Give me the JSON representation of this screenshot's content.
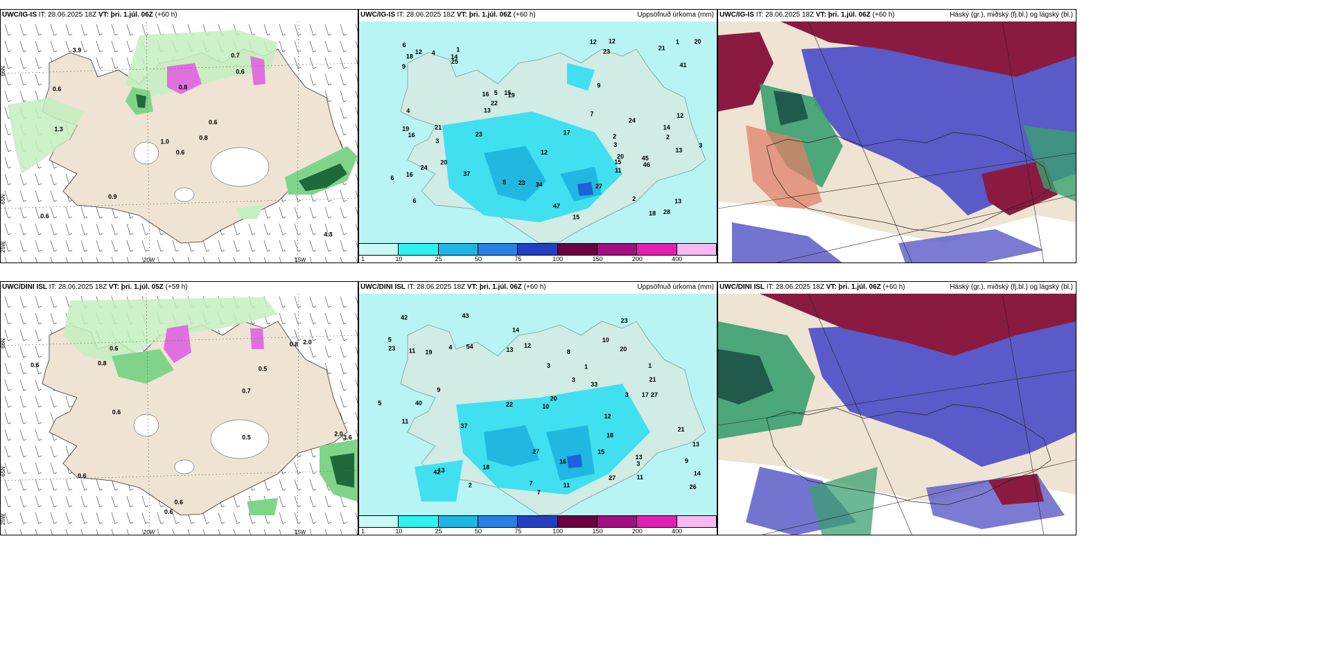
{
  "panels": [
    {
      "id": "p1",
      "model": "UWC/IG-IS",
      "it_label": "IT:",
      "it_value": "28.06.2025 18Z",
      "vt_label": "VT:",
      "vt_value": "þri. 1.júl. 06Z",
      "lead": "(+60 h)",
      "right": "",
      "labels": [
        "0.6",
        "0.6",
        "1.0",
        "0.6",
        "0.6",
        "0.9",
        "0.7",
        "0.8",
        "0.6",
        "0.8",
        "3.9",
        "4.3",
        "1.3"
      ],
      "grid": [
        "66N",
        "65N",
        "25W",
        "20W",
        "15W"
      ]
    },
    {
      "id": "p2",
      "model": "UWC/IG-IS",
      "it_label": "IT:",
      "it_value": "28.06.2025 18Z",
      "vt_label": "VT:",
      "vt_value": "þri. 1.júl. 06Z",
      "lead": "(+60 h)",
      "right": "Uppsöfnuð úrkoma (mm)",
      "labels": [
        "3",
        "2",
        "6",
        "1",
        "19",
        "2",
        "16",
        "23",
        "16",
        "15",
        "9",
        "19",
        "18",
        "13",
        "8",
        "12",
        "12",
        "17",
        "15",
        "20",
        "20",
        "21",
        "13",
        "13",
        "12",
        "14",
        "20",
        "16",
        "25",
        "24",
        "47",
        "27",
        "22",
        "23",
        "14",
        "46",
        "15",
        "21",
        "34",
        "24",
        "41",
        "12",
        "28",
        "23",
        "45",
        "37",
        "6",
        "12",
        "7",
        "4",
        "3",
        "5",
        "1",
        "2",
        "11",
        "18",
        "9",
        "6",
        "3",
        "4"
      ],
      "colorbar": [
        "1",
        "10",
        "25",
        "50",
        "75",
        "100",
        "150",
        "200",
        "400"
      ]
    },
    {
      "id": "p3",
      "model": "UWC/IG-IS",
      "it_label": "IT:",
      "it_value": "28.06.2025 18Z",
      "vt_label": "VT:",
      "vt_value": "þri. 1.júl. 06Z",
      "lead": "(+60 h)",
      "right": "Háský (gr.), miðský (fj.bl.) og lágský (bl.)"
    },
    {
      "id": "p4",
      "model": "UWC/DINI ISL",
      "it_label": "IT:",
      "it_value": "28.06.2025 18Z",
      "vt_label": "VT:",
      "vt_value": "þri. 1.júl. 05Z",
      "lead": "(+59 h)",
      "right": "",
      "labels": [
        "0.6",
        "0.8",
        "0.7",
        "0.6",
        "0.8",
        "0.6",
        "0.5",
        "0.6",
        "2.0",
        "3.6",
        "2.0",
        "0.6",
        "0.5",
        "0.6"
      ],
      "grid": [
        "66N",
        "65N",
        "25W",
        "20W",
        "15W"
      ]
    },
    {
      "id": "p5",
      "model": "UWC/DINI ISL",
      "it_label": "IT:",
      "it_value": "28.06.2025 18Z",
      "vt_label": "VT:",
      "vt_value": "þri. 1.júl. 06Z",
      "lead": "(+60 h)",
      "right": "Uppsöfnuð úrkoma (mm)",
      "labels": [
        "3",
        "3",
        "5",
        "1",
        "7",
        "12",
        "11",
        "10",
        "9",
        "11",
        "13",
        "8",
        "12",
        "11",
        "14",
        "20",
        "13",
        "15",
        "16",
        "18",
        "23",
        "27",
        "33",
        "22",
        "21",
        "19",
        "42",
        "26",
        "20",
        "14",
        "42",
        "40",
        "23",
        "27",
        "37",
        "13",
        "43",
        "54",
        "27",
        "11",
        "10",
        "5",
        "3",
        "2",
        "1",
        "7",
        "9",
        "21",
        "18",
        "17",
        "13",
        "3",
        "4"
      ],
      "colorbar": [
        "1",
        "10",
        "25",
        "50",
        "75",
        "100",
        "150",
        "200",
        "400"
      ]
    },
    {
      "id": "p6",
      "model": "UWC/DINI ISL",
      "it_label": "IT:",
      "it_value": "28.06.2025 18Z",
      "vt_label": "VT:",
      "vt_value": "þri. 1.júl. 06Z",
      "lead": "(+60 h)",
      "right": "Háský (gr.), miðský (fj.bl.) og lágský (bl.)"
    }
  ],
  "colors": {
    "land": "#efe3d3",
    "sea": "#ffffff",
    "precip_light": "#b8f4f4",
    "precip_mid": "#40e0f0",
    "precip_high": "#20b8e0",
    "precip_blue": "#2060d8",
    "green_light": "#c4efc0",
    "green_mid": "#80d48a",
    "green_dark": "#1f6a3a",
    "magenta": "#e070e0",
    "cloud_high": "#8a1a40",
    "cloud_mid": "#5a5ac8",
    "cloud_low": "#3aa070",
    "colorbar": [
      "#c8f8f8",
      "#30f0f0",
      "#20b4e4",
      "#2a80e0",
      "#2440c0",
      "#6a0040",
      "#a01080",
      "#e020b0",
      "#f8b8f0"
    ]
  }
}
